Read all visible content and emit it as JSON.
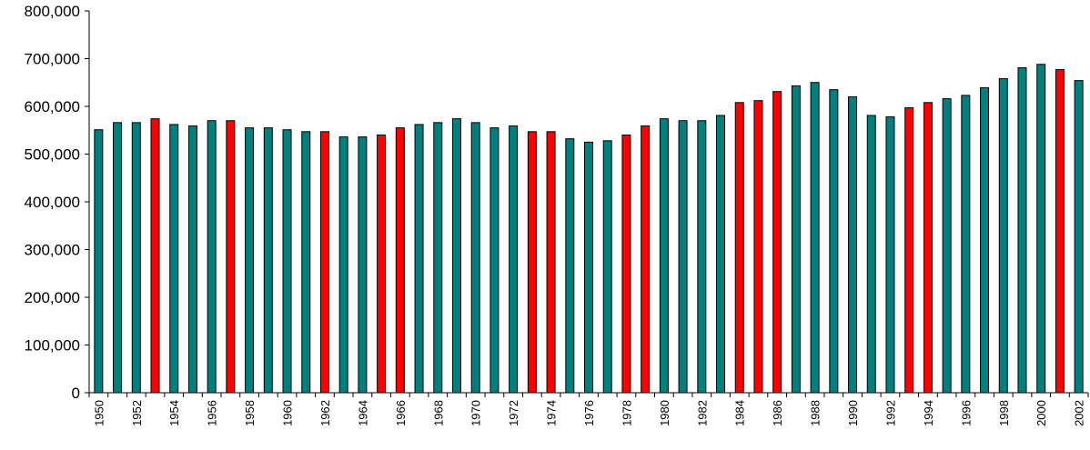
{
  "chart_data": {
    "type": "bar",
    "title": "",
    "xlabel": "",
    "ylabel": "",
    "ylim": [
      0,
      800000
    ],
    "yticks": [
      0,
      100000,
      200000,
      300000,
      400000,
      500000,
      600000,
      700000,
      800000
    ],
    "ytick_labels": [
      "0",
      "100,000",
      "200,000",
      "300,000",
      "400,000",
      "500,000",
      "600,000",
      "700,000",
      "800,000"
    ],
    "xtick_labels": [
      "1950",
      "1952",
      "1954",
      "1956",
      "1958",
      "1960",
      "1962",
      "1964",
      "1966",
      "1968",
      "1970",
      "1972",
      "1974",
      "1976",
      "1978",
      "1980",
      "1982",
      "1984",
      "1986",
      "1988",
      "1990",
      "1992",
      "1994",
      "1996",
      "1998",
      "2000",
      "2002"
    ],
    "grid": false,
    "legend": "none",
    "colors": {
      "teal": "#007f7f",
      "red": "#ff0000",
      "outline": "#000000"
    },
    "categories": [
      "1950",
      "1951",
      "1952",
      "1953",
      "1954",
      "1955",
      "1956",
      "1957",
      "1958",
      "1959",
      "1960",
      "1961",
      "1962",
      "1963",
      "1964",
      "1965",
      "1966",
      "1967",
      "1968",
      "1969",
      "1970",
      "1971",
      "1972",
      "1973",
      "1974",
      "1975",
      "1976",
      "1977",
      "1978",
      "1979",
      "1980",
      "1981",
      "1982",
      "1983",
      "1984",
      "1985",
      "1986",
      "1987",
      "1988",
      "1989",
      "1990",
      "1991",
      "1992",
      "1993",
      "1994",
      "1995",
      "1996",
      "1997",
      "1998",
      "1999",
      "2000",
      "2001",
      "2002"
    ],
    "values": [
      551000,
      566000,
      566000,
      574000,
      562000,
      559000,
      570000,
      570000,
      555000,
      555000,
      551000,
      547000,
      547000,
      536000,
      536000,
      540000,
      555000,
      562000,
      566000,
      574000,
      566000,
      555000,
      559000,
      547000,
      547000,
      532000,
      525000,
      528000,
      540000,
      559000,
      574000,
      570000,
      570000,
      581000,
      608000,
      612000,
      631000,
      643000,
      650000,
      635000,
      620000,
      581000,
      578000,
      597000,
      608000,
      616000,
      623000,
      639000,
      658000,
      681000,
      688000,
      677000,
      654000
    ],
    "bar_colors": [
      "teal",
      "teal",
      "teal",
      "red",
      "teal",
      "teal",
      "teal",
      "red",
      "teal",
      "teal",
      "teal",
      "teal",
      "red",
      "teal",
      "teal",
      "red",
      "red",
      "teal",
      "teal",
      "teal",
      "teal",
      "teal",
      "teal",
      "red",
      "red",
      "teal",
      "teal",
      "teal",
      "red",
      "red",
      "teal",
      "teal",
      "teal",
      "teal",
      "red",
      "red",
      "red",
      "teal",
      "teal",
      "teal",
      "teal",
      "teal",
      "teal",
      "red",
      "red",
      "teal",
      "teal",
      "teal",
      "teal",
      "teal",
      "teal",
      "red",
      "teal"
    ]
  }
}
